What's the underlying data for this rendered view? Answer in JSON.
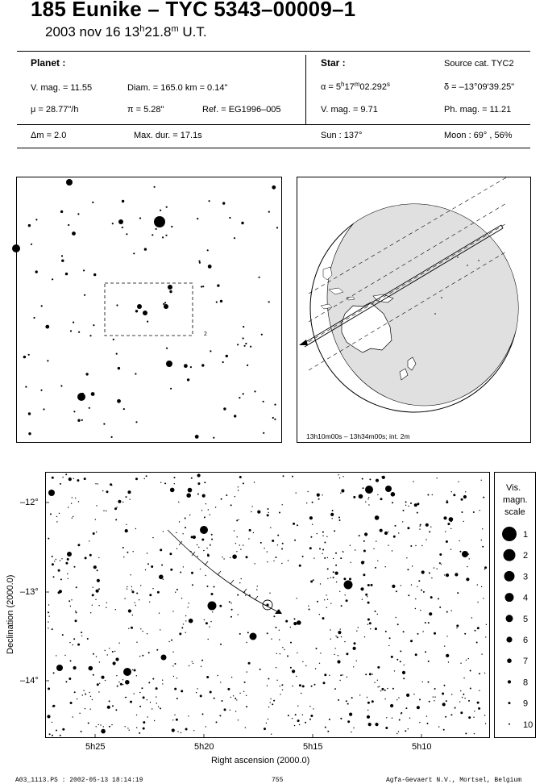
{
  "header": {
    "title": "185 Eunike  –  TYC 5343–00009–1",
    "date": "2003 nov 16  13",
    "time_h_sup": "h",
    "time_min": "21.8",
    "time_m_sup": "m",
    "time_suffix": " U.T."
  },
  "planet": {
    "heading": "Planet :",
    "vmag": "V. mag. = 11.55",
    "diam": "Diam. = 165.0 km = 0.14\"",
    "mu": "μ =  28.77\"/h",
    "pi": "π =  5.28\"",
    "ref": "Ref. = EG1996–005",
    "dm": "Δm = 2.0",
    "maxdur": "Max. dur. = 17.1s"
  },
  "star": {
    "heading": "Star :",
    "source": "Source cat.  TYC2",
    "alpha_a": "α =  5",
    "alpha_h": "h",
    "alpha_b": "17",
    "alpha_m": "m",
    "alpha_c": "02.292",
    "alpha_s": "s",
    "delta": "δ = –13°09'39.25\"",
    "vmag": "V. mag. =  9.71",
    "phmag": "Ph. mag. = 11.21",
    "sun": "Sun : 137°",
    "moon": "Moon :  69° , 56%"
  },
  "globe": {
    "caption": "13h10m00s – 13h34m00s; int.  2m",
    "colors": {
      "shadow": "#e0e0e0",
      "line": "#000000"
    }
  },
  "finder": {
    "label_2": "2"
  },
  "chart_data": {
    "type": "scatter",
    "xlabel": "Right ascension (2000.0)",
    "ylabel": "Declination (2000.0)",
    "xticks": [
      "5h25",
      "5h20",
      "5h15",
      "5h10"
    ],
    "yticks": [
      "–12°",
      "–13°",
      "–14°"
    ],
    "legend_title": [
      "Vis.",
      "magn.",
      "scale"
    ],
    "legend_mags": [
      "1",
      "2",
      "3",
      "4",
      "5",
      "6",
      "7",
      "8",
      "9",
      "10"
    ]
  },
  "footer": {
    "left": "A03_1113.PS : 2002-05-13 18:14:19",
    "center": "755",
    "right": "Agfa-Gevaert N.V., Mortsel, Belgium"
  }
}
